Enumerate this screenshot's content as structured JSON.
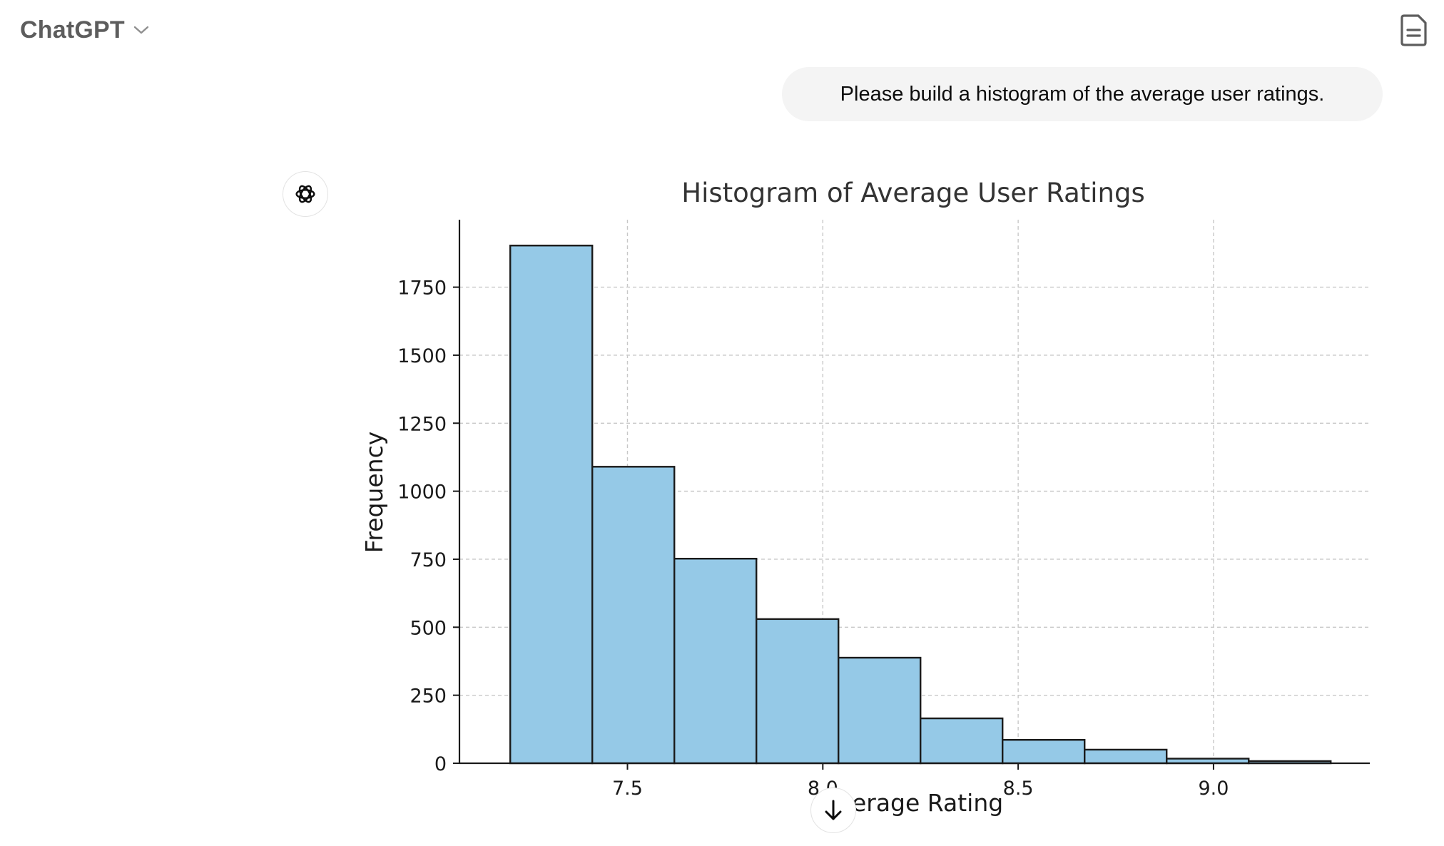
{
  "header": {
    "app_name": "ChatGPT",
    "icons": {
      "model_dropdown": "chevron-down-icon",
      "notes": "document-icon"
    }
  },
  "conversation": {
    "user_message": "Please build a histogram of the average user ratings.",
    "assistant_icon": "openai-logo-icon"
  },
  "scroll_button": {
    "icon": "arrow-down-icon"
  },
  "colors": {
    "bar_fill": "#95c9e7",
    "bar_edge": "#1a1a1a",
    "grid": "#c8c8c8",
    "bubble": "#f4f4f4"
  },
  "chart_data": {
    "type": "bar",
    "title": "Histogram of Average User Ratings",
    "xlabel": "Average Rating",
    "ylabel": "Frequency",
    "bin_edges": [
      7.2,
      7.41,
      7.62,
      7.83,
      8.04,
      8.25,
      8.46,
      8.67,
      8.88,
      9.09,
      9.3
    ],
    "values": [
      1903,
      1090,
      752,
      530,
      388,
      165,
      86,
      50,
      17,
      8
    ],
    "xlim": [
      7.07,
      9.4
    ],
    "ylim": [
      0,
      1998
    ],
    "xticks": [
      7.5,
      8.0,
      8.5,
      9.0
    ],
    "xtick_labels": [
      "7.5",
      "8.0",
      "8.5",
      "9.0"
    ],
    "yticks": [
      0,
      250,
      500,
      750,
      1000,
      1250,
      1500,
      1750
    ],
    "ytick_labels": [
      "0",
      "250",
      "500",
      "750",
      "1000",
      "1250",
      "1500",
      "1750"
    ],
    "grid": true
  }
}
